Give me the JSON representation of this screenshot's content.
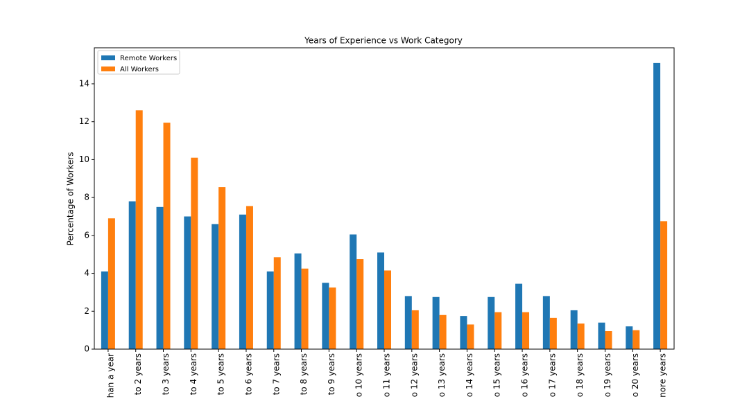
{
  "chart_data": {
    "type": "bar",
    "title": "Years of Experience vs Work Category",
    "ylabel": "Percentage of Workers",
    "categories": [
      "han a year",
      "to 2 years",
      "to 3 years",
      "to 4 years",
      "to 5 years",
      "to 6 years",
      "to 7 years",
      "to 8 years",
      "to 9 years",
      "o 10 years",
      "o 11 years",
      "o 12 years",
      "o 13 years",
      "o 14 years",
      "o 15 years",
      "o 16 years",
      "o 17 years",
      "o 18 years",
      "o 19 years",
      "o 20 years",
      "nore years"
    ],
    "series": [
      {
        "name": "Remote Workers",
        "color": "#1f77b4",
        "values": [
          4.1,
          7.8,
          7.5,
          7.0,
          6.6,
          7.1,
          4.1,
          5.05,
          3.5,
          6.05,
          5.1,
          2.8,
          2.75,
          1.75,
          2.75,
          3.45,
          2.8,
          2.05,
          1.4,
          1.2,
          15.1
        ]
      },
      {
        "name": "All Workers",
        "color": "#ff7f0e",
        "values": [
          6.9,
          12.6,
          11.95,
          10.1,
          8.55,
          7.55,
          4.85,
          4.25,
          3.25,
          4.75,
          4.15,
          2.05,
          1.8,
          1.3,
          1.95,
          1.95,
          1.65,
          1.35,
          0.95,
          1.0,
          6.75
        ]
      }
    ],
    "ylim": [
      0,
      15.9
    ],
    "yticks": [
      0,
      2,
      4,
      6,
      8,
      10,
      12,
      14
    ],
    "legend": "upper-left"
  }
}
